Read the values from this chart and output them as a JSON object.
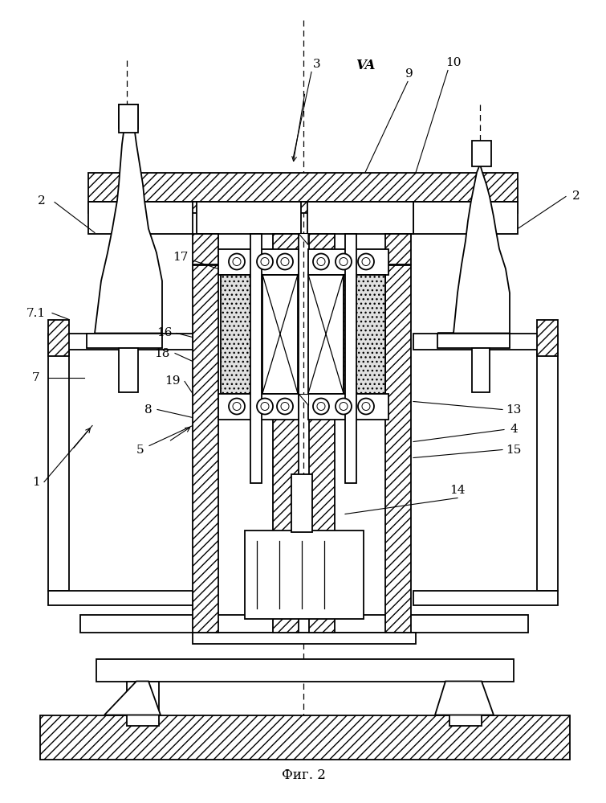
{
  "title": "Фиг. 2",
  "bg": "#ffffff",
  "figsize": [
    7.55,
    9.99
  ],
  "dpi": 100,
  "lw": 1.3,
  "hatch_lw": 0.5
}
